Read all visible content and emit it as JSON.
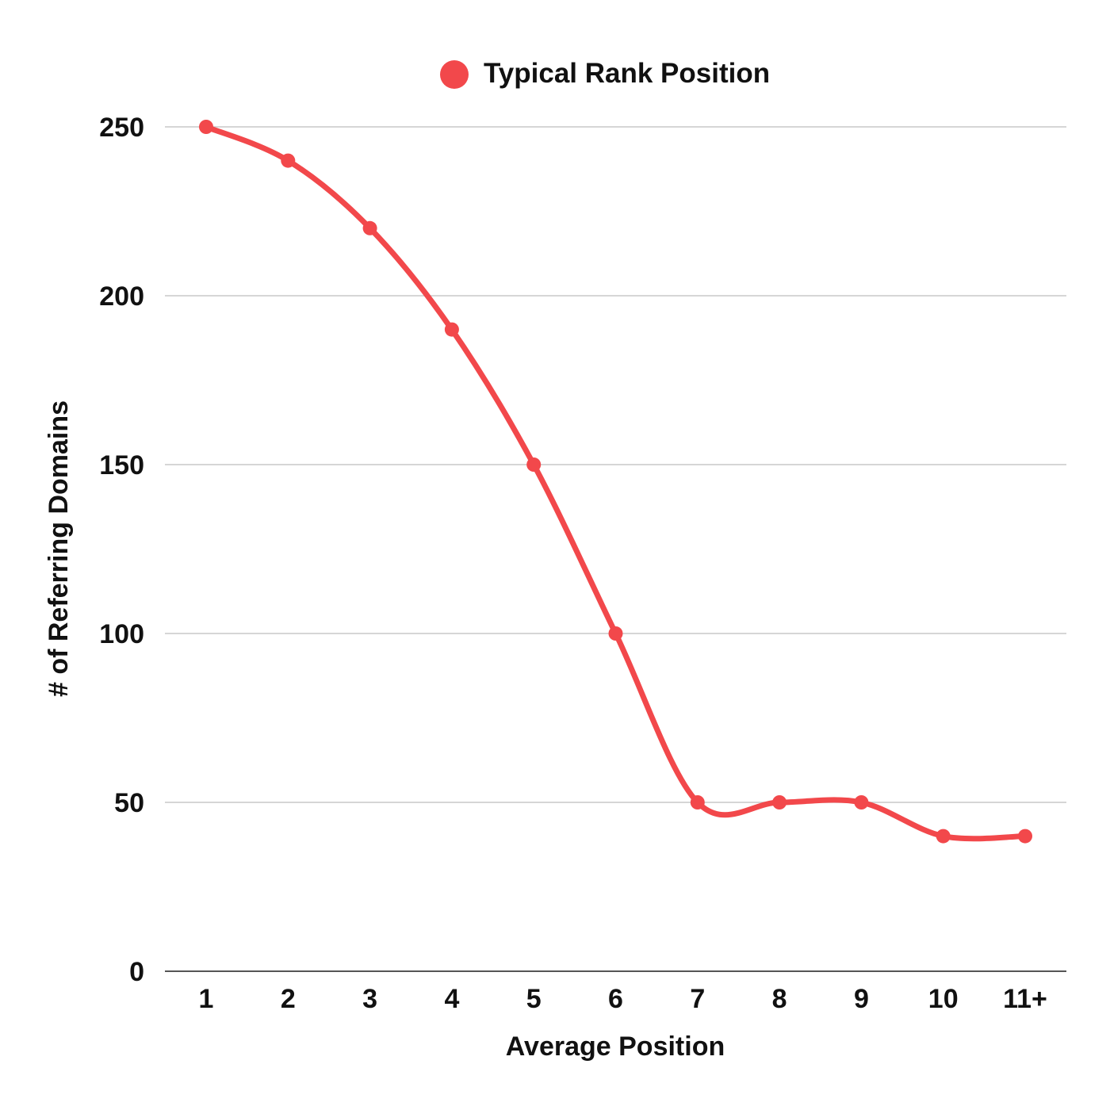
{
  "legend": {
    "label": "Typical Rank Position"
  },
  "chart_data": {
    "type": "line",
    "title": "",
    "xlabel": "Average Position",
    "ylabel": "# of Referring Domains",
    "categories": [
      "1",
      "2",
      "3",
      "4",
      "5",
      "6",
      "7",
      "8",
      "9",
      "10",
      "11+"
    ],
    "series": [
      {
        "name": "Typical Rank Position",
        "values": [
          250,
          240,
          220,
          190,
          150,
          100,
          50,
          50,
          50,
          40,
          40
        ],
        "color": "#f2484b"
      }
    ],
    "yticks": [
      0,
      50,
      100,
      150,
      200,
      250
    ],
    "ylim": [
      0,
      250
    ],
    "grid": true,
    "legend_position": "top-center",
    "smooth": true
  },
  "colors": {
    "series": "#f2484b",
    "grid": "#c8c8c8",
    "axis": "#555555",
    "text": "#111111"
  }
}
